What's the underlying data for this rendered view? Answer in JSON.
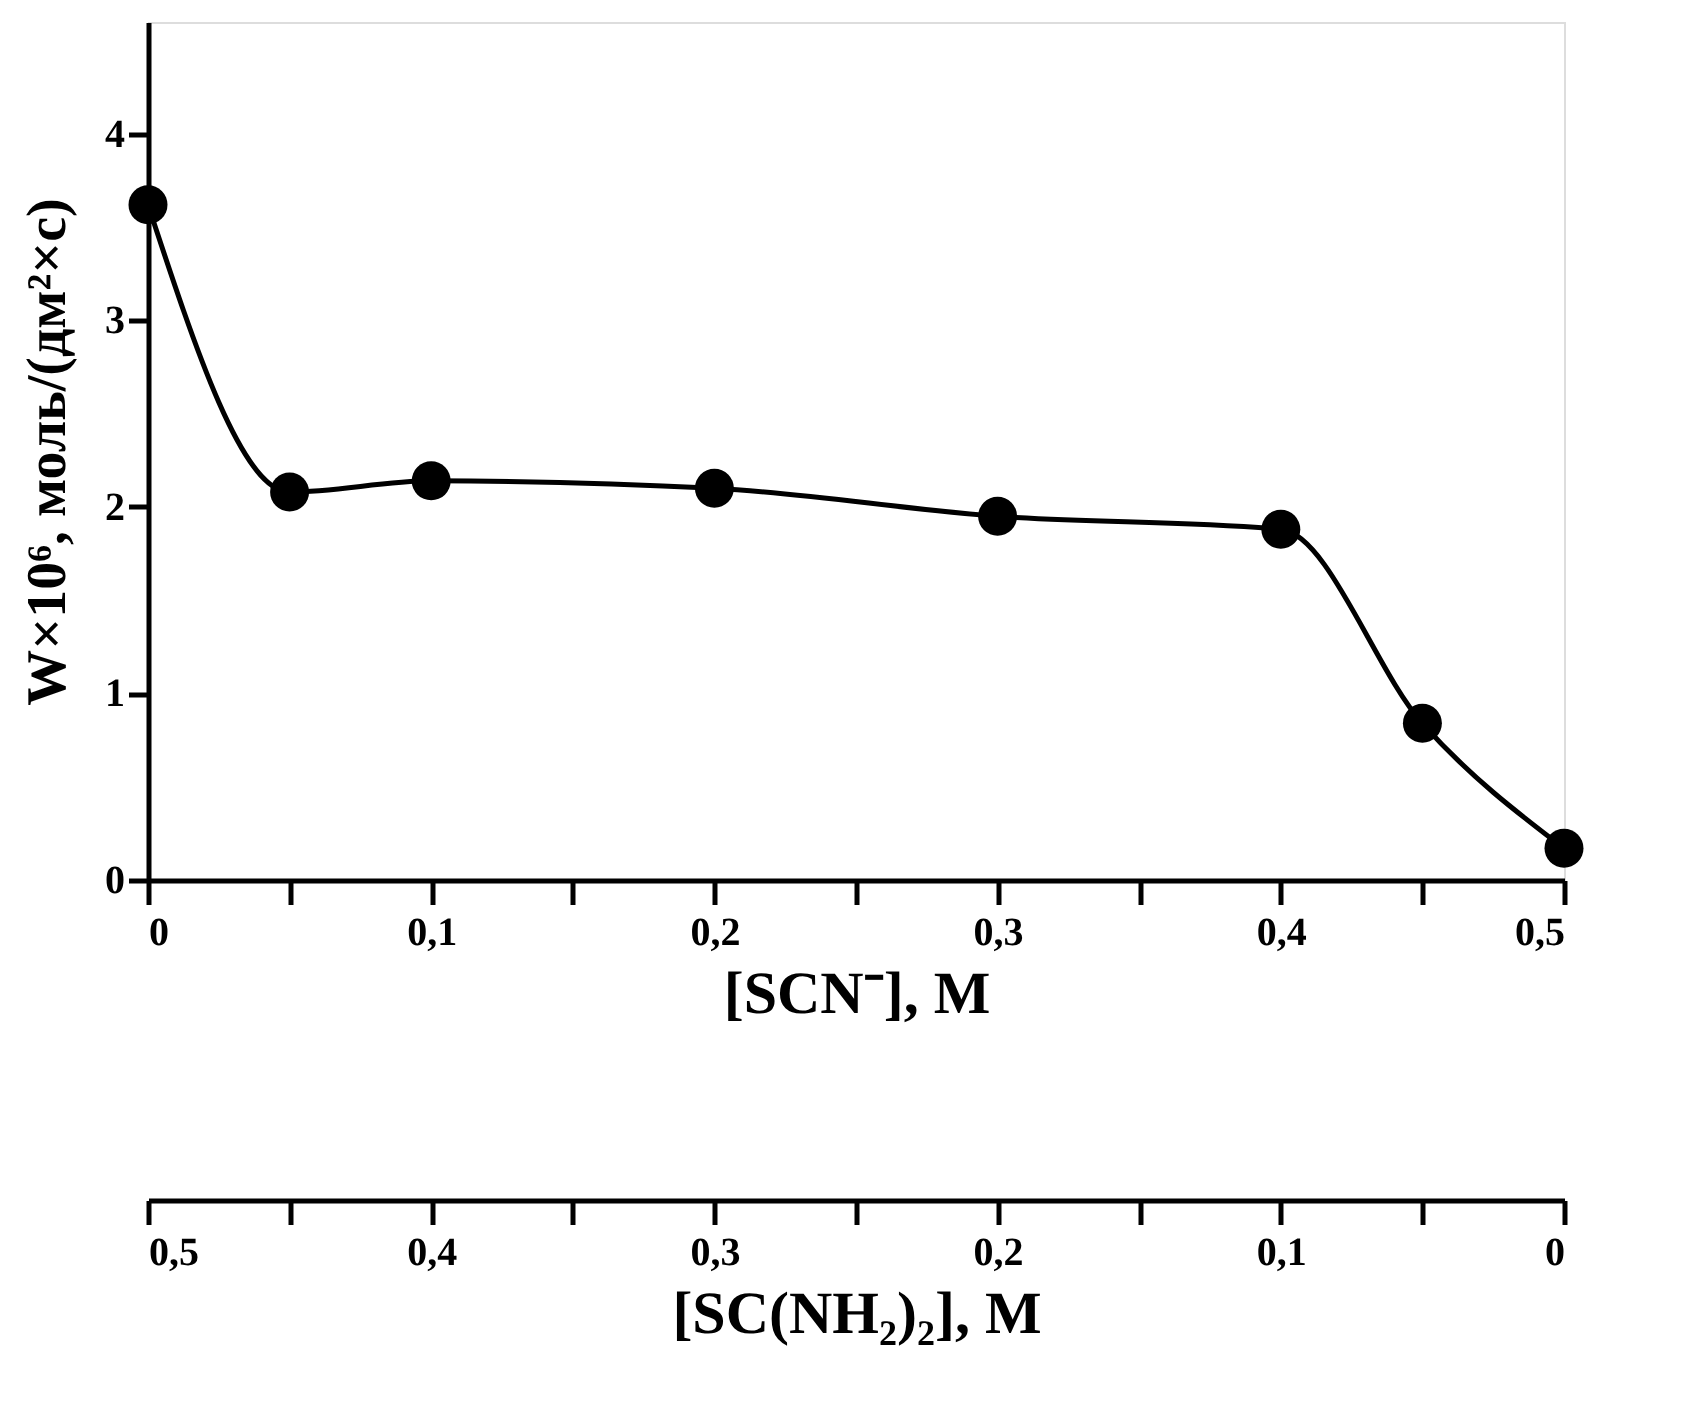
{
  "chart_data": {
    "type": "line",
    "xlabel": "[SCN⁻], M",
    "ylabel": "W×10⁶, моль/(дм²×с)",
    "x2label": "[SC(NH₂)₂], M",
    "x": [
      0,
      0.05,
      0.1,
      0.2,
      0.3,
      0.4,
      0.45,
      0.5
    ],
    "series": [
      {
        "color": "#000000",
        "values": [
          3.62,
          2.08,
          2.14,
          2.1,
          1.95,
          1.88,
          0.84,
          0.17
        ]
      }
    ],
    "xlim": [
      0,
      0.5
    ],
    "xticks": [
      {
        "value": 0,
        "label": "0"
      },
      {
        "value": 0.05,
        "label": null
      },
      {
        "value": 0.1,
        "label": "0,1"
      },
      {
        "value": 0.15,
        "label": null
      },
      {
        "value": 0.2,
        "label": "0,2"
      },
      {
        "value": 0.25,
        "label": null
      },
      {
        "value": 0.3,
        "label": "0,3"
      },
      {
        "value": 0.35,
        "label": null
      },
      {
        "value": 0.4,
        "label": "0,4"
      },
      {
        "value": 0.45,
        "label": null
      },
      {
        "value": 0.5,
        "label": "0,5"
      }
    ],
    "x2lim": [
      0.5,
      0
    ],
    "x2ticks": [
      {
        "value": 0.5,
        "label": "0,5"
      },
      {
        "value": 0.45,
        "label": null
      },
      {
        "value": 0.4,
        "label": "0,4"
      },
      {
        "value": 0.35,
        "label": null
      },
      {
        "value": 0.3,
        "label": "0,3"
      },
      {
        "value": 0.25,
        "label": null
      },
      {
        "value": 0.2,
        "label": "0,2"
      },
      {
        "value": 0.15,
        "label": null
      },
      {
        "value": 0.1,
        "label": "0,1"
      },
      {
        "value": 0.05,
        "label": null
      },
      {
        "value": 0,
        "label": "0"
      }
    ],
    "ylim": [
      0,
      4.6
    ],
    "yticks": [
      0,
      1,
      2,
      3,
      4
    ],
    "grid": false,
    "marker": "circle",
    "line_style": "solid"
  }
}
